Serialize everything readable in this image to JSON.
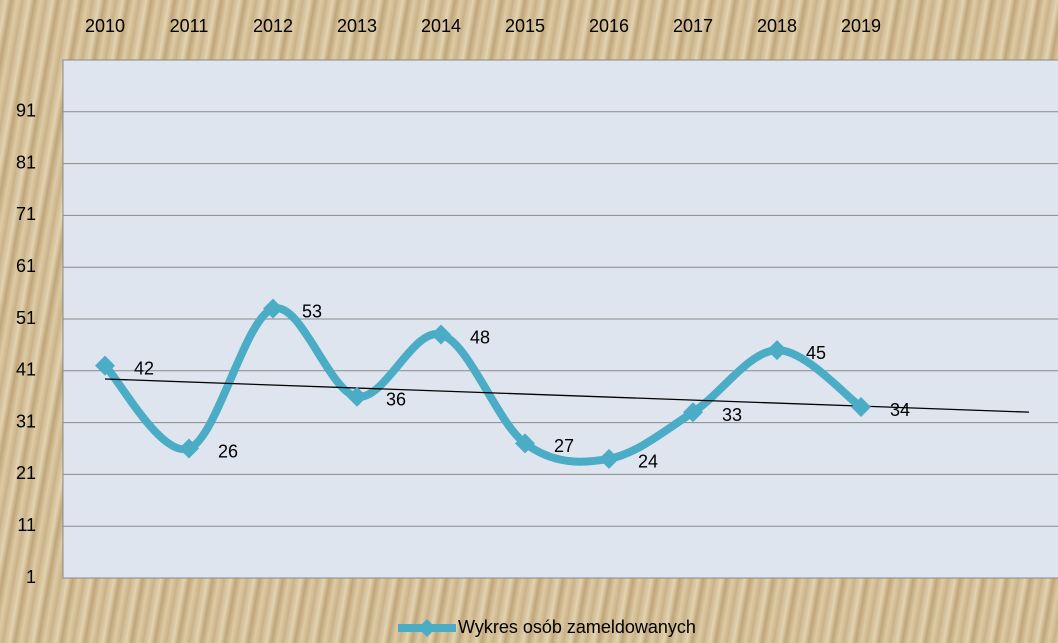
{
  "chart_data": {
    "type": "line",
    "categories": [
      "2010",
      "2011",
      "2012",
      "2013",
      "2014",
      "2015",
      "2016",
      "2017",
      "2018",
      "2019",
      null,
      null
    ],
    "series": [
      {
        "name": "Wykres osób zameldowanych",
        "color": "#4bacc6",
        "values": [
          42,
          26,
          53,
          36,
          48,
          27,
          24,
          33,
          45,
          34,
          null,
          null
        ]
      }
    ],
    "ylim": [
      1,
      101
    ],
    "yticks": [
      1,
      11,
      21,
      31,
      41,
      51,
      61,
      71,
      81,
      91
    ],
    "grid": true,
    "smooth": true,
    "trendline": true,
    "legend": "bottom",
    "plot_color": "#dfe5ef"
  }
}
